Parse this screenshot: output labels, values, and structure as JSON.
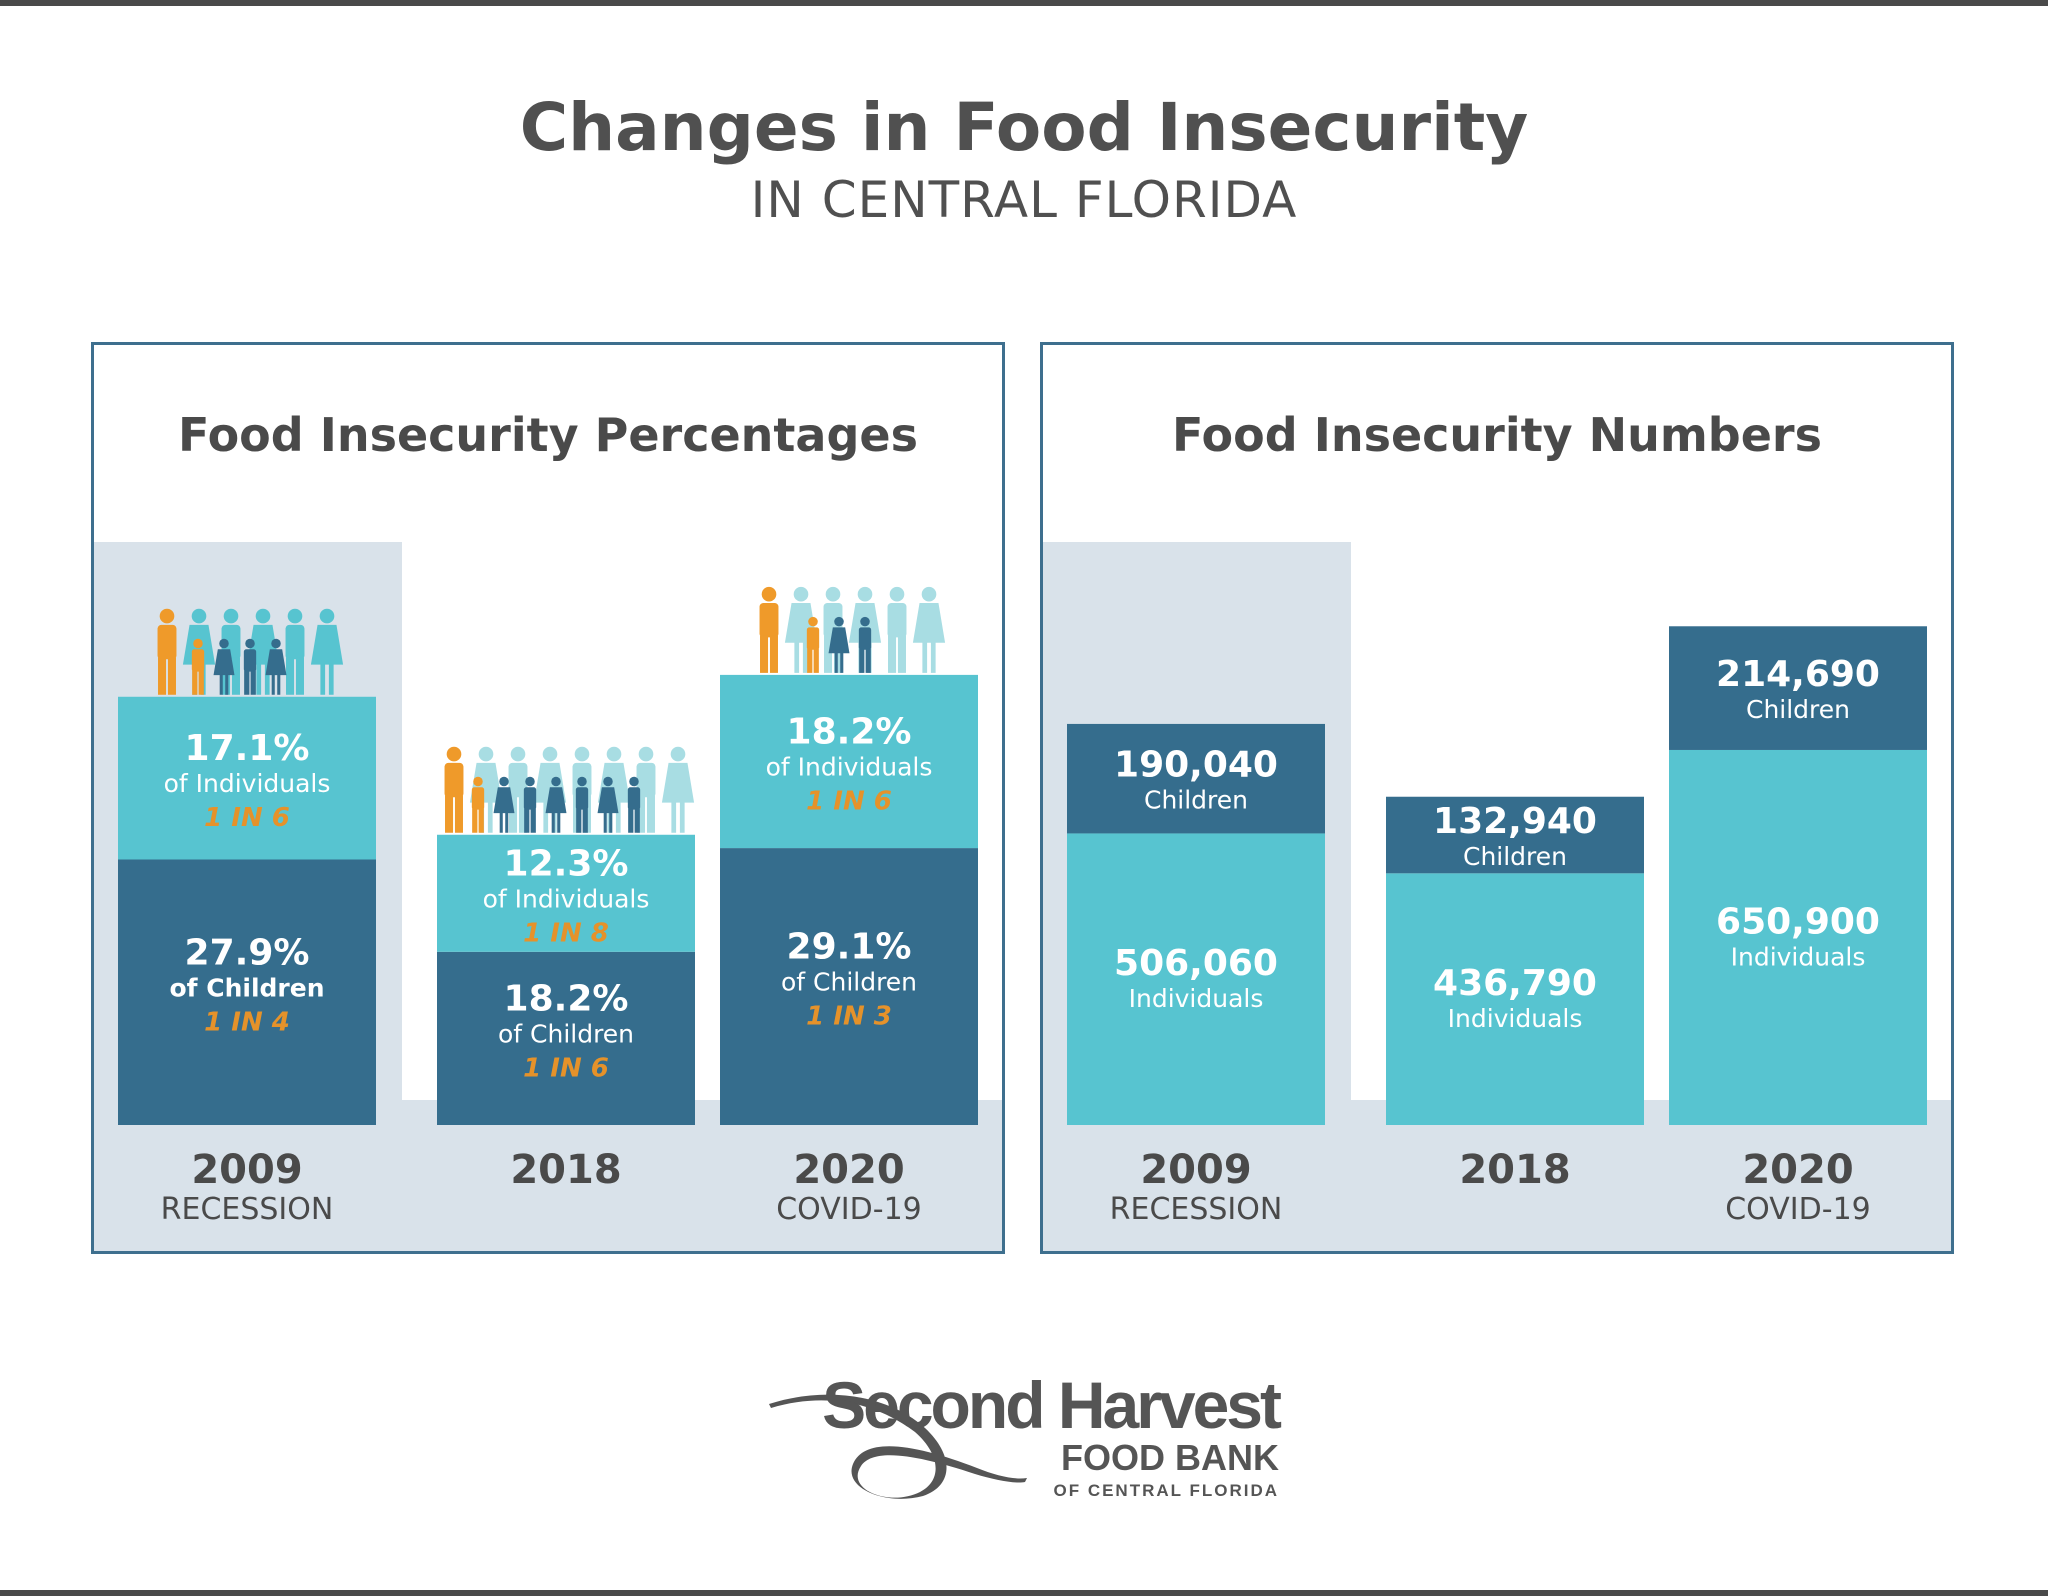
{
  "title": "Changes in Food Insecurity",
  "subtitle": "IN CENTRAL FLORIDA",
  "colors": {
    "light_bar": "#57c4d0",
    "dark_bar": "#356d8d",
    "highlight_bg": "#d9e2ea",
    "ratio_text": "#e5922a",
    "border": "#3e6f8e",
    "icon_orange": "#ef9a2a",
    "icon_teal": "#57c4d0",
    "icon_light": "#a8dde3",
    "icon_navy": "#356d8d"
  },
  "logo": {
    "line1": "Second Harvest",
    "line2": "FOOD BANK",
    "line3": "OF CENTRAL FLORIDA"
  },
  "chart_data": [
    {
      "type": "bar",
      "stacked": true,
      "title": "Food Insecurity Percentages",
      "categories": [
        "2009",
        "2018",
        "2020"
      ],
      "category_sublabels": [
        "RECESSION",
        "",
        "COVID-19"
      ],
      "series": [
        {
          "name": "of Children",
          "values": [
            27.9,
            18.2,
            29.1
          ],
          "labels": [
            "27.9%",
            "18.2%",
            "29.1%"
          ],
          "ratios": [
            "1 IN 4",
            "1 IN 6",
            "1 IN 3"
          ]
        },
        {
          "name": "of Individuals",
          "values": [
            17.1,
            12.3,
            18.2
          ],
          "labels": [
            "17.1%",
            "12.3%",
            "18.2%"
          ],
          "ratios": [
            "1 IN 6",
            "1 IN 8",
            "1 IN 6"
          ]
        }
      ],
      "icon_groups": [
        {
          "category": "2009",
          "top": [
            "orange",
            "teal",
            "teal",
            "teal",
            "teal",
            "teal"
          ],
          "front": [
            "orange",
            "navy",
            "navy",
            "navy"
          ]
        },
        {
          "category": "2018",
          "top": [
            "orange",
            "light",
            "light",
            "light",
            "light",
            "light",
            "light",
            "light"
          ],
          "front": [
            "orange",
            "navy",
            "navy",
            "navy",
            "navy",
            "navy",
            "navy"
          ]
        },
        {
          "category": "2020",
          "top": [
            "orange",
            "light",
            "light",
            "light",
            "light",
            "light"
          ],
          "front": [
            "orange",
            "navy",
            "navy"
          ]
        }
      ]
    },
    {
      "type": "bar",
      "stacked": true,
      "title": "Food Insecurity Numbers",
      "categories": [
        "2009",
        "2018",
        "2020"
      ],
      "category_sublabels": [
        "RECESSION",
        "",
        "COVID-19"
      ],
      "series": [
        {
          "name": "Individuals",
          "values": [
            506060,
            436790,
            650900
          ],
          "labels": [
            "506,060",
            "436,790",
            "650,900"
          ]
        },
        {
          "name": "Children",
          "values": [
            190040,
            132940,
            214690
          ],
          "labels": [
            "190,040",
            "132,940",
            "214,690"
          ]
        }
      ]
    }
  ]
}
